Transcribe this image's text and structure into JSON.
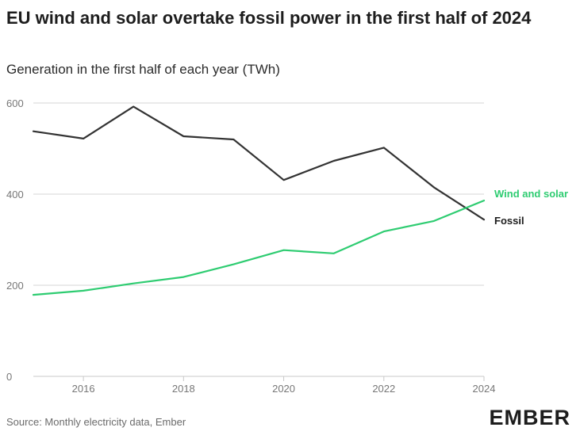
{
  "chart_data": {
    "type": "line",
    "title": "EU wind and solar overtake fossil power in the first half of 2024",
    "subtitle": "Generation in the first half of each year (TWh)",
    "x": [
      2015,
      2016,
      2017,
      2018,
      2019,
      2020,
      2021,
      2022,
      2023,
      2024
    ],
    "xticks": [
      "2016",
      "2018",
      "2020",
      "2022",
      "2024"
    ],
    "yticks": [
      "0",
      "200",
      "400",
      "600"
    ],
    "ylim": [
      0,
      600
    ],
    "xlim": [
      2015,
      2024
    ],
    "grid": true,
    "series": [
      {
        "name": "Fossil",
        "color": "#333333",
        "values": [
          538,
          522,
          592,
          527,
          520,
          431,
          473,
          502,
          415,
          344
        ]
      },
      {
        "name": "Wind and solar",
        "color": "#2ecc71",
        "values": [
          179,
          188,
          204,
          218,
          246,
          277,
          270,
          318,
          341,
          386
        ]
      }
    ]
  },
  "footer": {
    "source": "Source: Monthly electricity data, Ember",
    "logo": "EMBER"
  }
}
